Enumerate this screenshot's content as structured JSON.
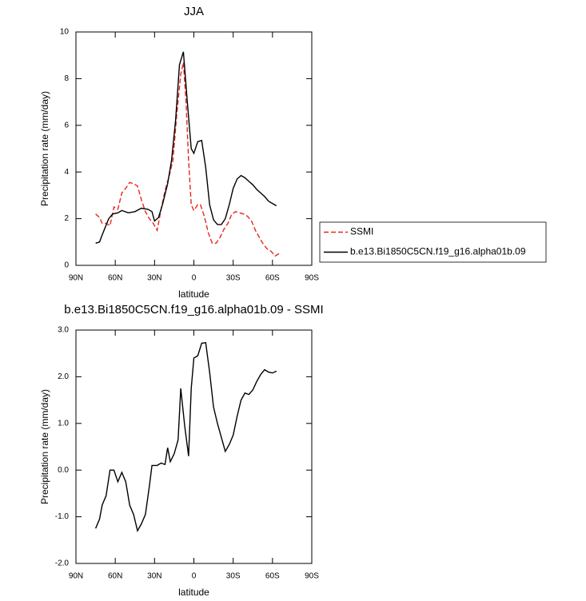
{
  "chart_data": [
    {
      "type": "line",
      "title": "JJA",
      "xlabel": "latitude",
      "ylabel": "Precipitation rate (mm/day)",
      "xlim": [
        90,
        -90
      ],
      "ylim": [
        0,
        10
      ],
      "xticks": [
        {
          "value": 90,
          "label": "90N"
        },
        {
          "value": 60,
          "label": "60N"
        },
        {
          "value": 30,
          "label": "30N"
        },
        0,
        {
          "value": -30,
          "label": "30S"
        },
        {
          "value": -60,
          "label": "60S"
        },
        {
          "value": -90,
          "label": "90S"
        }
      ],
      "yticks": [
        0,
        2,
        4,
        6,
        8,
        10
      ],
      "legend": "right",
      "series": [
        {
          "name": "SSMI",
          "color": "#e8261c",
          "dash": true,
          "x": [
            75,
            72,
            70,
            67,
            64,
            61,
            58,
            55,
            52,
            49,
            46,
            43,
            40,
            37,
            34,
            31,
            28,
            25,
            22,
            19,
            16,
            13,
            10,
            8,
            6,
            4,
            2,
            0,
            -3,
            -5,
            -8,
            -11,
            -14,
            -17,
            -20,
            -23,
            -26,
            -29,
            -32,
            -35,
            -38,
            -41,
            -44,
            -47,
            -50,
            -53,
            -56,
            -59,
            -62,
            -65
          ],
          "values": [
            2.2,
            2.05,
            1.8,
            1.8,
            1.7,
            2.5,
            2.4,
            3.1,
            3.3,
            3.55,
            3.5,
            3.4,
            2.8,
            2.3,
            2.0,
            1.8,
            1.5,
            2.4,
            3.2,
            3.8,
            4.5,
            6.5,
            8.2,
            8.7,
            7.0,
            4.5,
            2.6,
            2.35,
            2.6,
            2.6,
            2.1,
            1.4,
            0.95,
            0.95,
            1.2,
            1.55,
            1.8,
            2.2,
            2.3,
            2.25,
            2.2,
            2.1,
            1.9,
            1.5,
            1.2,
            0.9,
            0.7,
            0.6,
            0.4,
            0.5
          ]
        },
        {
          "name": "b.e13.Bi1850C5CN.f19_g16.alpha01b.09",
          "color": "#000000",
          "dash": false,
          "x": [
            75,
            72,
            70,
            65,
            62,
            58,
            55,
            50,
            45,
            40,
            35,
            32,
            30,
            27,
            24,
            20,
            17,
            14,
            11,
            8,
            5,
            2,
            0,
            -3,
            -6,
            -9,
            -12,
            -15,
            -18,
            -21,
            -24,
            -27,
            -30,
            -33,
            -36,
            -39,
            -42,
            -45,
            -48,
            -51,
            -54,
            -57,
            -60,
            -63
          ],
          "values": [
            0.95,
            1.0,
            1.3,
            2.0,
            2.2,
            2.25,
            2.35,
            2.25,
            2.3,
            2.45,
            2.4,
            2.3,
            1.9,
            2.05,
            2.6,
            3.5,
            4.5,
            6.2,
            8.6,
            9.15,
            7.0,
            5.0,
            4.8,
            5.3,
            5.35,
            4.2,
            2.6,
            1.95,
            1.75,
            1.75,
            2.0,
            2.6,
            3.3,
            3.7,
            3.85,
            3.75,
            3.6,
            3.45,
            3.25,
            3.1,
            2.95,
            2.75,
            2.65,
            2.55
          ]
        }
      ]
    },
    {
      "type": "line",
      "title": "b.e13.Bi1850C5CN.f19_g16.alpha01b.09 - SSMI",
      "xlabel": "latitude",
      "ylabel": "Precipitation rate (mm/day)",
      "xlim": [
        90,
        -90
      ],
      "ylim": [
        -2,
        3
      ],
      "xticks": [
        {
          "value": 90,
          "label": "90N"
        },
        {
          "value": 60,
          "label": "60N"
        },
        {
          "value": 30,
          "label": "30N"
        },
        0,
        {
          "value": -30,
          "label": "30S"
        },
        {
          "value": -60,
          "label": "60S"
        },
        {
          "value": -90,
          "label": "90S"
        }
      ],
      "yticks": [
        {
          "value": -2,
          "label": "-2.0"
        },
        {
          "value": -1,
          "label": "-1.0"
        },
        {
          "value": 0,
          "label": "0.0"
        },
        {
          "value": 1,
          "label": "1.0"
        },
        {
          "value": 2,
          "label": "2.0"
        },
        {
          "value": 3,
          "label": "3.0"
        }
      ],
      "series": [
        {
          "color": "#000000",
          "dash": false,
          "x": [
            75,
            72,
            70,
            67,
            64,
            61,
            58,
            55,
            52,
            49,
            46,
            43,
            40,
            37,
            34,
            32,
            28,
            25,
            22,
            20,
            18,
            15,
            12,
            10,
            7,
            4,
            2,
            0,
            -3,
            -6,
            -9,
            -12,
            -15,
            -18,
            -21,
            -24,
            -27,
            -30,
            -33,
            -36,
            -39,
            -42,
            -45,
            -48,
            -51,
            -54,
            -57,
            -60,
            -63
          ],
          "values": [
            -1.25,
            -1.05,
            -0.75,
            -0.55,
            0.0,
            0.0,
            -0.25,
            -0.05,
            -0.25,
            -0.75,
            -0.95,
            -1.3,
            -1.15,
            -0.95,
            -0.35,
            0.1,
            0.1,
            0.15,
            0.12,
            0.48,
            0.18,
            0.35,
            0.65,
            1.75,
            0.95,
            0.3,
            1.75,
            2.4,
            2.45,
            2.72,
            2.73,
            2.1,
            1.35,
            1.0,
            0.7,
            0.4,
            0.55,
            0.75,
            1.15,
            1.5,
            1.65,
            1.62,
            1.72,
            1.9,
            2.05,
            2.15,
            2.1,
            2.08,
            2.12
          ]
        }
      ]
    }
  ]
}
